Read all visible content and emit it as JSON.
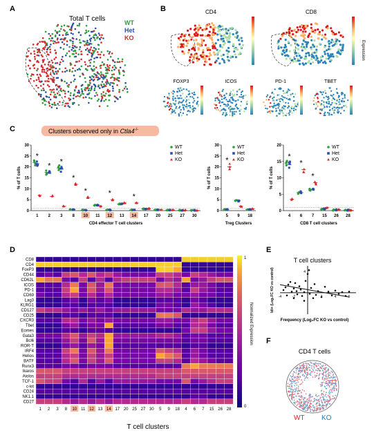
{
  "panels": {
    "A": {
      "label": "A",
      "title": "Total T cells",
      "legend": [
        {
          "text": "WT",
          "color": "#2e9e3e"
        },
        {
          "text": "Het",
          "color": "#2c4ea6"
        },
        {
          "text": "KO",
          "color": "#d62a2a"
        }
      ]
    },
    "B": {
      "label": "B",
      "maps": [
        {
          "title": "CD4",
          "big": true
        },
        {
          "title": "CD8",
          "big": true
        },
        {
          "title": "FOXP3",
          "big": false
        },
        {
          "title": "ICOS",
          "big": false
        },
        {
          "title": "PD-1",
          "big": false
        },
        {
          "title": "TBET",
          "big": false
        }
      ],
      "colorbar_label": "Expression"
    },
    "C": {
      "label": "C",
      "banner_prefix": "Clusters observed only in ",
      "banner_italic": "Ctla4",
      "banner_sup": "-/-",
      "ylabel": "% of T cells",
      "legend": [
        {
          "text": "WT",
          "color": "#2e9e3e"
        },
        {
          "text": "Het",
          "color": "#2c4ea6"
        },
        {
          "text": "KO",
          "color": "#d62a2a"
        }
      ]
    },
    "D": {
      "label": "D",
      "xlabel": "T cell clusters",
      "colorbar_label": "Normalized Expression",
      "colorbar_ticks": [
        "1",
        "0"
      ]
    },
    "E": {
      "label": "E",
      "title": "T cell clusters",
      "xlabel": "Frequency (Log₂FC KO vs control)",
      "ylabel": "Idi+ (Log₂FC KO vs control)",
      "x_ticks": [
        "-4",
        "-2",
        "2",
        "4",
        "6"
      ],
      "y_ticks": [
        "4"
      ]
    },
    "F": {
      "label": "F",
      "title": "CD4 T cells",
      "legend": [
        {
          "text": "WT",
          "color": "#d62a2a"
        },
        {
          "text": "KO",
          "color": "#2c7bb6"
        }
      ]
    }
  },
  "chart_data": [
    {
      "type": "scatter",
      "title": "CD4 effector T cell clusters",
      "ylabel": "% of T cells",
      "ylim": [
        0,
        30
      ],
      "yticks": [
        0,
        5,
        10,
        15,
        20,
        25,
        30
      ],
      "categories": [
        "1",
        "2",
        "3",
        "8",
        "10",
        "11",
        "12",
        "13",
        "14",
        "17",
        "20",
        "25",
        "27",
        "30"
      ],
      "highlighted_categories": [
        "10",
        "12",
        "14"
      ],
      "significant_categories": [
        "1",
        "2",
        "3",
        "8",
        "10",
        "12",
        "14"
      ],
      "series": [
        {
          "name": "WT",
          "color": "#2e9e3e",
          "values": [
            22,
            17.5,
            19.5,
            0.5,
            0.3,
            2.5,
            0.3,
            3,
            0.3,
            0.8,
            0.4,
            0.3,
            0.2,
            0.1
          ]
        },
        {
          "name": "Het",
          "color": "#2c4ea6",
          "values": [
            21.5,
            17,
            19,
            0.5,
            0.3,
            2.5,
            0.3,
            3,
            0.3,
            0.8,
            0.4,
            0.3,
            0.2,
            0.1
          ]
        },
        {
          "name": "KO",
          "color": "#d62a2a",
          "values": [
            7,
            6.5,
            2,
            12,
            6,
            2,
            5,
            3.5,
            3.5,
            1,
            0.5,
            0.3,
            0.2,
            0.1
          ]
        }
      ]
    },
    {
      "type": "scatter",
      "title": "Treg Clusters",
      "ylabel": "% of T cells",
      "ylim": [
        0,
        30
      ],
      "yticks": [
        0,
        5,
        10,
        15,
        20,
        25,
        30
      ],
      "categories": [
        "5",
        "9",
        "18"
      ],
      "significant_categories": [
        "5"
      ],
      "series": [
        {
          "name": "WT",
          "color": "#2e9e3e",
          "values": [
            0.5,
            4.5,
            0.5
          ]
        },
        {
          "name": "Het",
          "color": "#2c4ea6",
          "values": [
            0.5,
            4.5,
            0.5
          ]
        },
        {
          "name": "KO",
          "color": "#d62a2a",
          "values": [
            20,
            2,
            0.8
          ]
        }
      ]
    },
    {
      "type": "scatter",
      "title": "CD8 T cell clusters",
      "ylabel": "% of T cells",
      "ylim": [
        0,
        20
      ],
      "yticks": [
        0,
        5,
        10,
        15,
        20
      ],
      "categories": [
        "4",
        "6",
        "7",
        "15",
        "26",
        "28"
      ],
      "significant_categories": [
        "4",
        "6",
        "7"
      ],
      "series": [
        {
          "name": "WT",
          "color": "#2e9e3e",
          "values": [
            14.5,
            5.5,
            6.5,
            0.5,
            0.2,
            0.1
          ]
        },
        {
          "name": "Het",
          "color": "#2c4ea6",
          "values": [
            14,
            5.5,
            6.5,
            0.5,
            0.2,
            0.1
          ]
        },
        {
          "name": "KO",
          "color": "#d62a2a",
          "values": [
            3.5,
            12.5,
            8.5,
            1,
            0.3,
            0.1
          ]
        }
      ]
    },
    {
      "type": "heatmap",
      "xlabel": "T cell clusters",
      "colorbar_label": "Normalized Expression",
      "columns": [
        "1",
        "2",
        "3",
        "8",
        "10",
        "11",
        "12",
        "13",
        "14",
        "17",
        "20",
        "25",
        "27",
        "30",
        "5",
        "9",
        "18",
        "4",
        "6",
        "7",
        "15",
        "26",
        "28"
      ],
      "highlighted_columns": [
        "10",
        "12",
        "14"
      ],
      "rows": [
        "CD8",
        "CD4",
        "FoxP3",
        "CD44",
        "CD62L",
        "ICOS",
        "PD-1",
        "CD69",
        "Lag3",
        "KLRG1",
        "CD127",
        "CD25",
        "CXCR3",
        "Tbet",
        "Eomes",
        "Gata3",
        "Bcl6",
        "ROR-T",
        "IRF4",
        "Helios",
        "BATF",
        "Runx3",
        "Ikaros",
        "Aiolos",
        "TCF-1",
        "c-kit",
        "CD24",
        "NK1.1",
        "CD27"
      ],
      "values": [
        [
          0.1,
          0.1,
          0.1,
          0.1,
          0.1,
          0.1,
          0.1,
          0.1,
          0.1,
          0.1,
          0.1,
          0.1,
          0.1,
          0.1,
          0.1,
          0.1,
          0.1,
          0.95,
          0.95,
          0.95,
          0.95,
          0.95,
          0.95
        ],
        [
          0.95,
          0.95,
          0.95,
          0.95,
          0.95,
          0.95,
          0.95,
          0.95,
          0.95,
          0.95,
          0.95,
          0.95,
          0.95,
          0.95,
          0.95,
          0.95,
          0.95,
          0.1,
          0.1,
          0.1,
          0.1,
          0.1,
          0.1
        ],
        [
          0.1,
          0.1,
          0.1,
          0.1,
          0.1,
          0.1,
          0.1,
          0.1,
          0.1,
          0.1,
          0.1,
          0.1,
          0.1,
          0.1,
          0.95,
          0.95,
          0.9,
          0.1,
          0.1,
          0.1,
          0.1,
          0.1,
          0.1
        ],
        [
          0.2,
          0.3,
          0.2,
          0.6,
          0.7,
          0.5,
          0.7,
          0.5,
          0.6,
          0.4,
          0.3,
          0.3,
          0.3,
          0.3,
          0.6,
          0.6,
          0.5,
          0.3,
          0.6,
          0.5,
          0.4,
          0.3,
          0.3
        ],
        [
          0.9,
          0.8,
          0.8,
          0.3,
          0.2,
          0.6,
          0.2,
          0.5,
          0.2,
          0.5,
          0.6,
          0.6,
          0.6,
          0.6,
          0.3,
          0.5,
          0.4,
          0.9,
          0.3,
          0.4,
          0.6,
          0.7,
          0.7
        ],
        [
          0.2,
          0.2,
          0.2,
          0.5,
          0.8,
          0.3,
          0.7,
          0.4,
          0.8,
          0.3,
          0.3,
          0.3,
          0.3,
          0.3,
          0.7,
          0.7,
          0.5,
          0.2,
          0.4,
          0.4,
          0.3,
          0.2,
          0.2
        ],
        [
          0.2,
          0.2,
          0.2,
          0.6,
          0.9,
          0.3,
          0.7,
          0.4,
          0.7,
          0.3,
          0.3,
          0.3,
          0.3,
          0.3,
          0.5,
          0.5,
          0.4,
          0.2,
          0.6,
          0.4,
          0.3,
          0.2,
          0.2
        ],
        [
          0.3,
          0.2,
          0.2,
          0.5,
          0.6,
          0.3,
          0.5,
          0.3,
          0.5,
          0.3,
          0.3,
          0.3,
          0.3,
          0.3,
          0.4,
          0.4,
          0.3,
          0.3,
          0.4,
          0.3,
          0.3,
          0.2,
          0.2
        ],
        [
          0.1,
          0.1,
          0.1,
          0.2,
          0.3,
          0.1,
          0.3,
          0.2,
          0.3,
          0.1,
          0.1,
          0.1,
          0.1,
          0.1,
          0.2,
          0.2,
          0.2,
          0.1,
          0.3,
          0.2,
          0.1,
          0.1,
          0.1
        ],
        [
          0.1,
          0.1,
          0.1,
          0.2,
          0.2,
          0.1,
          0.2,
          0.2,
          0.2,
          0.1,
          0.1,
          0.1,
          0.1,
          0.1,
          0.3,
          0.3,
          0.2,
          0.1,
          0.4,
          0.3,
          0.2,
          0.1,
          0.1
        ],
        [
          0.6,
          0.5,
          0.5,
          0.4,
          0.3,
          0.4,
          0.3,
          0.4,
          0.3,
          0.4,
          0.4,
          0.4,
          0.4,
          0.4,
          0.3,
          0.3,
          0.3,
          0.5,
          0.4,
          0.4,
          0.5,
          0.5,
          0.5
        ],
        [
          0.1,
          0.1,
          0.1,
          0.2,
          0.2,
          0.1,
          0.2,
          0.2,
          0.2,
          0.1,
          0.1,
          0.1,
          0.1,
          0.1,
          0.8,
          0.8,
          0.7,
          0.1,
          0.1,
          0.1,
          0.1,
          0.1,
          0.1
        ],
        [
          0.2,
          0.2,
          0.2,
          0.5,
          0.5,
          0.3,
          0.4,
          0.3,
          0.4,
          0.3,
          0.3,
          0.3,
          0.3,
          0.3,
          0.4,
          0.4,
          0.3,
          0.3,
          0.5,
          0.6,
          0.4,
          0.3,
          0.3
        ],
        [
          0.1,
          0.1,
          0.1,
          0.3,
          0.4,
          0.2,
          0.3,
          0.3,
          0.9,
          0.2,
          0.2,
          0.2,
          0.2,
          0.2,
          0.3,
          0.3,
          0.2,
          0.2,
          0.5,
          0.5,
          0.3,
          0.2,
          0.2
        ],
        [
          0.1,
          0.1,
          0.1,
          0.2,
          0.2,
          0.1,
          0.2,
          0.2,
          0.2,
          0.1,
          0.1,
          0.1,
          0.1,
          0.1,
          0.1,
          0.1,
          0.1,
          0.3,
          0.6,
          0.6,
          0.4,
          0.3,
          0.3
        ],
        [
          0.3,
          0.3,
          0.3,
          0.5,
          0.7,
          0.4,
          0.6,
          0.5,
          0.9,
          0.4,
          0.4,
          0.4,
          0.4,
          0.4,
          0.5,
          0.5,
          0.4,
          0.2,
          0.3,
          0.3,
          0.2,
          0.2,
          0.2
        ],
        [
          0.2,
          0.2,
          0.2,
          0.4,
          0.6,
          0.3,
          0.7,
          0.4,
          0.9,
          0.3,
          0.3,
          0.3,
          0.3,
          0.3,
          0.3,
          0.3,
          0.3,
          0.2,
          0.3,
          0.3,
          0.2,
          0.2,
          0.2
        ],
        [
          0.1,
          0.1,
          0.1,
          0.3,
          0.4,
          0.2,
          0.4,
          0.3,
          0.9,
          0.2,
          0.2,
          0.2,
          0.2,
          0.2,
          0.2,
          0.2,
          0.2,
          0.1,
          0.2,
          0.2,
          0.1,
          0.1,
          0.1
        ],
        [
          0.2,
          0.2,
          0.2,
          0.6,
          0.8,
          0.3,
          0.7,
          0.4,
          0.8,
          0.3,
          0.3,
          0.3,
          0.3,
          0.3,
          0.7,
          0.6,
          0.5,
          0.2,
          0.4,
          0.3,
          0.2,
          0.2,
          0.2
        ],
        [
          0.2,
          0.2,
          0.2,
          0.5,
          0.6,
          0.3,
          0.6,
          0.4,
          0.6,
          0.3,
          0.3,
          0.3,
          0.3,
          0.3,
          0.9,
          0.8,
          0.7,
          0.2,
          0.4,
          0.3,
          0.2,
          0.2,
          0.2
        ],
        [
          0.2,
          0.2,
          0.2,
          0.5,
          0.7,
          0.3,
          0.6,
          0.4,
          0.7,
          0.3,
          0.3,
          0.3,
          0.3,
          0.3,
          0.6,
          0.6,
          0.5,
          0.2,
          0.5,
          0.4,
          0.3,
          0.2,
          0.2
        ],
        [
          0.2,
          0.2,
          0.2,
          0.3,
          0.3,
          0.2,
          0.3,
          0.3,
          0.3,
          0.2,
          0.2,
          0.2,
          0.2,
          0.2,
          0.2,
          0.2,
          0.2,
          0.8,
          0.9,
          0.8,
          0.8,
          0.8,
          0.8
        ],
        [
          0.7,
          0.7,
          0.7,
          0.6,
          0.6,
          0.6,
          0.6,
          0.6,
          0.6,
          0.6,
          0.6,
          0.6,
          0.6,
          0.6,
          0.6,
          0.6,
          0.6,
          0.7,
          0.7,
          0.7,
          0.7,
          0.7,
          0.7
        ],
        [
          0.6,
          0.6,
          0.6,
          0.5,
          0.5,
          0.5,
          0.5,
          0.5,
          0.5,
          0.5,
          0.5,
          0.5,
          0.5,
          0.5,
          0.6,
          0.6,
          0.6,
          0.6,
          0.6,
          0.6,
          0.6,
          0.6,
          0.6
        ],
        [
          0.7,
          0.6,
          0.6,
          0.3,
          0.2,
          0.5,
          0.2,
          0.4,
          0.2,
          0.4,
          0.4,
          0.4,
          0.4,
          0.4,
          0.3,
          0.3,
          0.3,
          0.7,
          0.3,
          0.4,
          0.5,
          0.6,
          0.6
        ],
        [
          0.1,
          0.1,
          0.1,
          0.1,
          0.1,
          0.1,
          0.1,
          0.1,
          0.1,
          0.1,
          0.1,
          0.1,
          0.1,
          0.1,
          0.1,
          0.1,
          0.1,
          0.1,
          0.1,
          0.1,
          0.1,
          0.1,
          0.1
        ],
        [
          0.2,
          0.2,
          0.2,
          0.2,
          0.2,
          0.2,
          0.2,
          0.2,
          0.2,
          0.2,
          0.2,
          0.2,
          0.2,
          0.2,
          0.2,
          0.2,
          0.2,
          0.2,
          0.2,
          0.2,
          0.2,
          0.2,
          0.2
        ],
        [
          0.1,
          0.1,
          0.1,
          0.1,
          0.1,
          0.1,
          0.1,
          0.1,
          0.1,
          0.1,
          0.1,
          0.1,
          0.1,
          0.1,
          0.1,
          0.1,
          0.1,
          0.1,
          0.2,
          0.2,
          0.1,
          0.1,
          0.1
        ],
        [
          0.6,
          0.6,
          0.6,
          0.5,
          0.4,
          0.5,
          0.4,
          0.5,
          0.4,
          0.5,
          0.5,
          0.5,
          0.5,
          0.5,
          0.5,
          0.5,
          0.5,
          0.6,
          0.5,
          0.5,
          0.6,
          0.6,
          0.6
        ]
      ]
    },
    {
      "type": "scatter",
      "title": "T cell clusters",
      "xlabel": "Frequency (Log₂FC KO vs control)",
      "ylabel": "Idi+ (Log₂FC KO vs control)",
      "xlim": [
        -4,
        7
      ],
      "ylim": [
        -4,
        5
      ],
      "xticks": [
        -4,
        -2,
        2,
        4,
        6
      ],
      "trendline": {
        "from": [
          -4,
          1.5
        ],
        "to": [
          6,
          -0.8
        ]
      },
      "x": [
        -3.5,
        -3.2,
        -3,
        -2.8,
        -2.5,
        -2.3,
        -2,
        -2,
        -1.8,
        -1.6,
        -1.5,
        -1.2,
        -1,
        -0.8,
        -0.5,
        -0.3,
        0,
        0.3,
        0.5,
        1,
        1.2,
        1.5,
        2,
        2.5,
        3,
        3.5,
        4,
        4.5,
        5,
        5.5,
        6,
        0.2,
        -0.5,
        0.8
      ],
      "y": [
        0.5,
        1,
        -0.5,
        1.5,
        2,
        0.2,
        -1,
        0.8,
        1.8,
        0.3,
        -0.3,
        1.2,
        0.6,
        -0.6,
        0.1,
        2.2,
        3.5,
        -0.2,
        0.9,
        1.6,
        -0.4,
        0.3,
        -0.8,
        1.1,
        0.2,
        -0.5,
        0.4,
        -0.2,
        0.1,
        -0.6,
        0.2,
        4.2,
        -1.5,
        -1
      ]
    }
  ]
}
